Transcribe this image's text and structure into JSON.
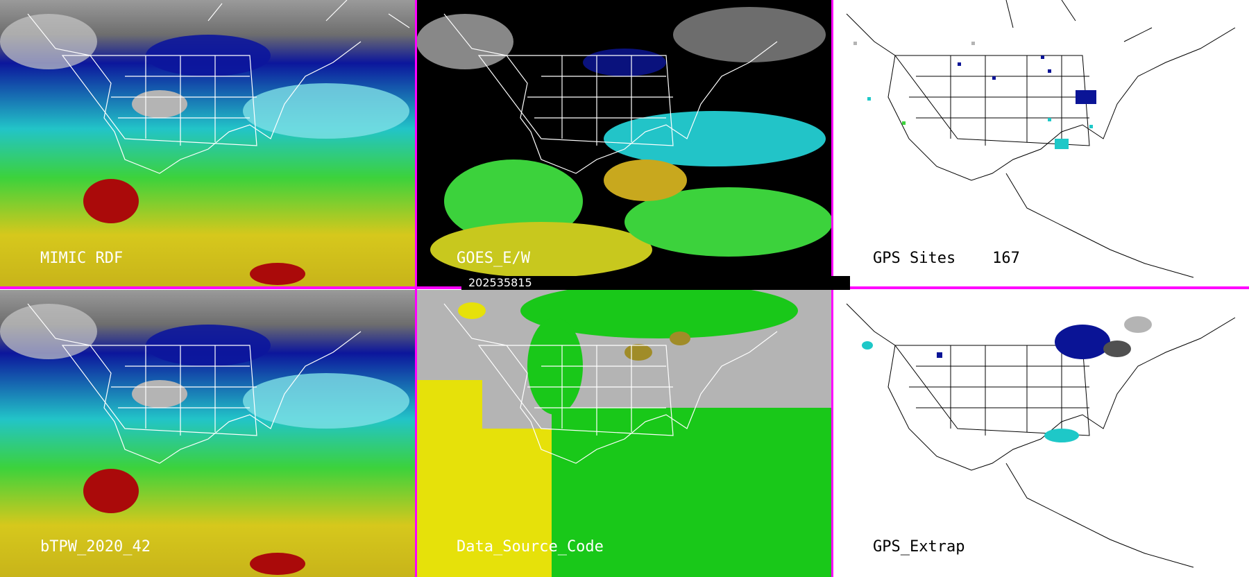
{
  "panels": [
    {
      "id": "p1",
      "title": "MIMIC RDF",
      "kind": "tpw"
    },
    {
      "id": "p2",
      "title": "GOES_E/W",
      "kind": "goes"
    },
    {
      "id": "p3",
      "title": "GPS Sites    167",
      "kind": "sites"
    },
    {
      "id": "p4",
      "title": "bTPW_2020_42",
      "kind": "tpw"
    },
    {
      "id": "p5",
      "title": "Data_Source_Code",
      "kind": "source"
    },
    {
      "id": "p6",
      "title": "GPS_Extrap",
      "kind": "extrap"
    }
  ],
  "timestamp": "202535815",
  "colors": {
    "divider": "#ff00ff",
    "tpw_dry_gray": "#8c8c8c",
    "tpw_dark_blue": "#0a1496",
    "tpw_cyan": "#1ec8c8",
    "tpw_green": "#3cd23c",
    "tpw_yellow": "#d2c81e",
    "tpw_red": "#aa0a0a",
    "source_gray": "#b4b4b4",
    "source_green": "#19c819",
    "source_yellow": "#e6e10a",
    "source_olive": "#a08c28"
  },
  "icons": [
    "coastline-outline",
    "state-border-grid",
    "gps-site-marker"
  ]
}
